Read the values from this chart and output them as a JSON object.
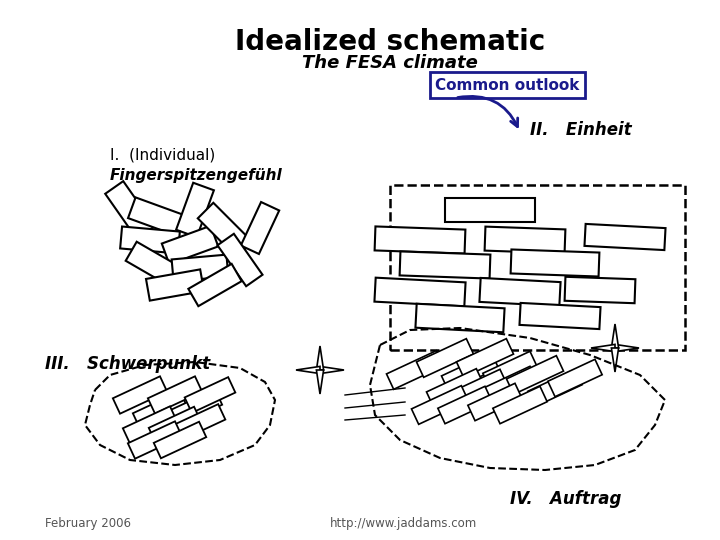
{
  "title": "Idealized schematic",
  "subtitle": "The FESA climate",
  "common_outlook_label": "Common outlook",
  "label_I_line1": "I.  (Individual)",
  "label_I_line2": "Fingerspitzengefühl",
  "label_II": "II.   Einheit",
  "label_III": "III.   Schwerpunkt",
  "label_IV": "IV.   Auftrag",
  "footer_left": "February 2006",
  "footer_right": "http://www.jaddams.com",
  "bg_color": "#ffffff",
  "box_color": "#1a1a8c",
  "text_color": "#000000"
}
